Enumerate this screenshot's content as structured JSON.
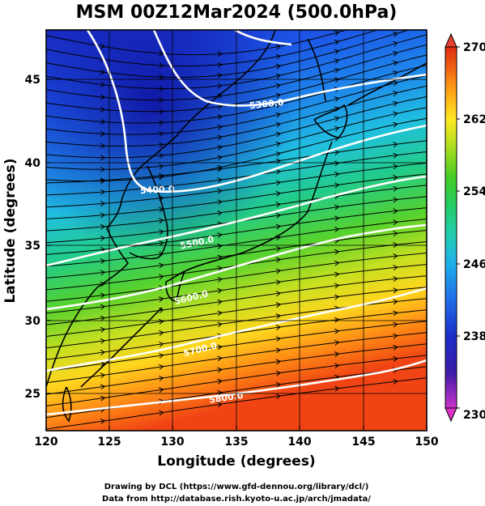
{
  "title": "MSM 00Z12Mar2024 (500.0hPa)",
  "xlabel": "Longitude (degrees)",
  "ylabel": "Latitude  (degrees)",
  "xticks": [
    "120",
    "125",
    "130",
    "135",
    "140",
    "145",
    "150"
  ],
  "yticks": [
    "25",
    "30",
    "35",
    "40",
    "45"
  ],
  "colorbar": {
    "ticks": [
      "230",
      "238",
      "246",
      "254",
      "262",
      "270"
    ],
    "min": 230,
    "max": 270,
    "colors": [
      "#cc33cc",
      "#1a1aa0",
      "#2244dd",
      "#1f77ee",
      "#1fb8e8",
      "#22cc88",
      "#33cc33",
      "#99dd22",
      "#ffee22",
      "#ffaa11",
      "#ff5511",
      "#dd2211"
    ]
  },
  "credits": {
    "line1": "Drawing by DCL (https://www.gfd-dennou.org/library/dcl/)",
    "line2": "Data from http://database.rish.kyoto-u.ac.jp/arch/jmadata/"
  },
  "contours": [
    {
      "label": "5300.0"
    },
    {
      "label": "5400.0"
    },
    {
      "label": "5500.0"
    },
    {
      "label": "5600.0"
    },
    {
      "label": "5700.0"
    },
    {
      "label": "5800.0"
    }
  ],
  "chart_data": {
    "type": "heatmap",
    "title": "MSM 00Z12Mar2024 (500.0hPa)",
    "xlabel": "Longitude (degrees)",
    "ylabel": "Latitude  (degrees)",
    "xlim": [
      120,
      150
    ],
    "ylim": [
      22.5,
      48
    ],
    "colorbar_range": [
      230,
      270
    ],
    "overlays": [
      "temperature shading",
      "geopotential height contours",
      "wind streamlines",
      "coastlines"
    ]
  }
}
